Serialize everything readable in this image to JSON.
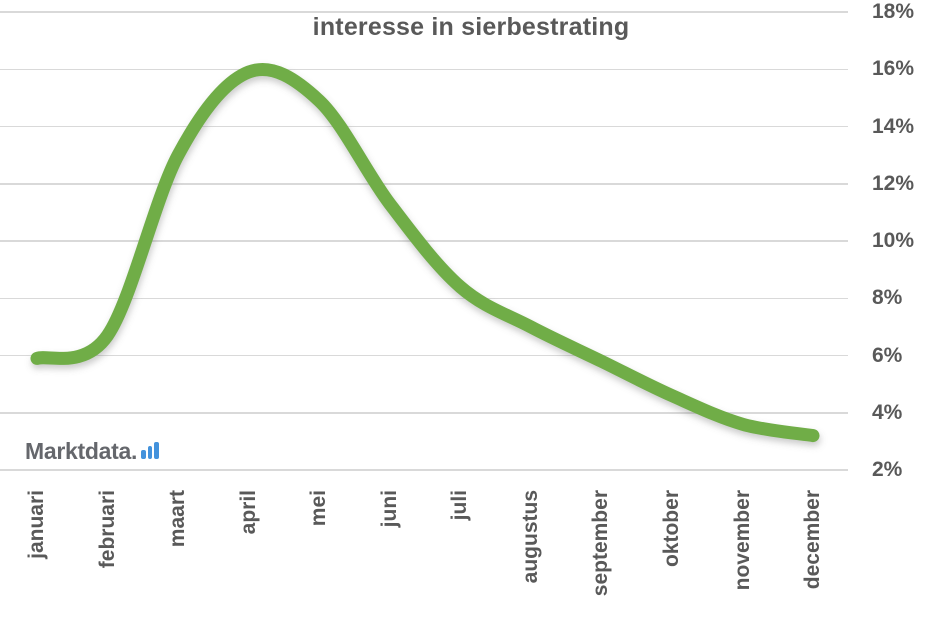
{
  "title": "interesse in sierbestrating",
  "logo": {
    "text": "Marktdata",
    "dot": "."
  },
  "chart_data": {
    "type": "line",
    "title": "interesse in sierbestrating",
    "categories": [
      "januari",
      "februari",
      "maart",
      "april",
      "mei",
      "juni",
      "juli",
      "augustus",
      "september",
      "oktober",
      "november",
      "december"
    ],
    "values": [
      5.9,
      6.7,
      13.0,
      15.9,
      14.9,
      11.3,
      8.4,
      7.0,
      5.8,
      4.6,
      3.6,
      3.2
    ],
    "unit": "%",
    "xlabel": "",
    "ylabel": "",
    "ylim": [
      2,
      18
    ],
    "ytick_values": [
      18,
      16,
      14,
      12,
      10,
      8,
      6,
      4,
      2
    ],
    "ytick_labels": [
      "18%",
      "16%",
      "14%",
      "12%",
      "10%",
      "8%",
      "6%",
      "4%",
      "2%"
    ],
    "ytick_side": "right",
    "grid": true,
    "legend": "none",
    "smooth": true,
    "x_labels_rotated": true,
    "line_color": "#6fad47"
  },
  "colors": {
    "line": "#6fad47",
    "text": "#595959",
    "gridline": "#d9d9d9",
    "logo_text": "#65676c",
    "logo_accent": "#4392dc",
    "background": "#ffffff"
  }
}
